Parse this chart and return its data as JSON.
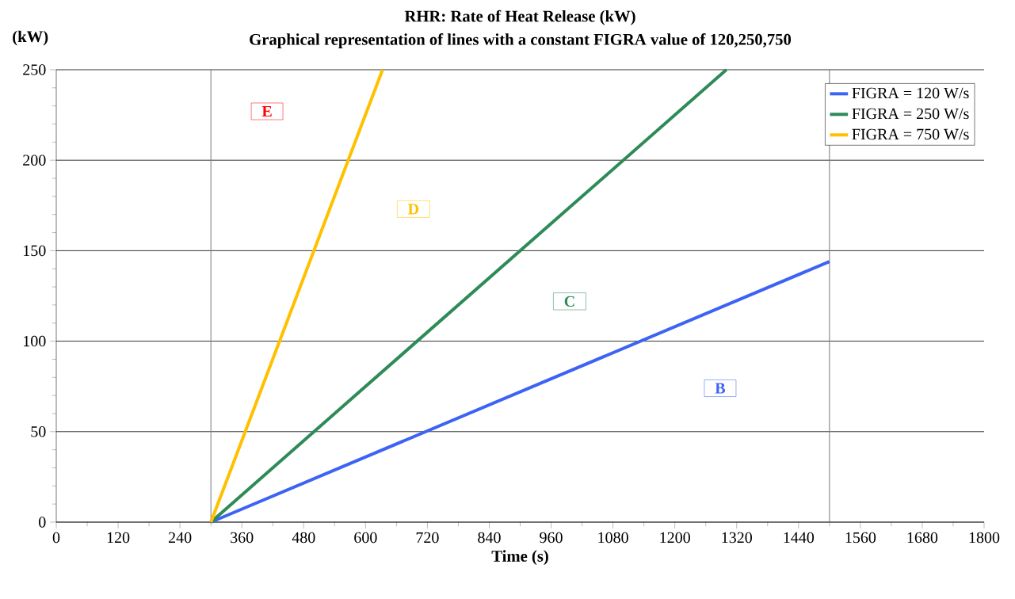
{
  "chart_data": {
    "type": "line",
    "title": "RHR: Rate of Heat Release (kW)",
    "subtitle": "Graphical representation of lines with a constant FIGRA value of 120,250,750",
    "xlabel": "Time (s)",
    "ylabel": "(kW)",
    "series": [
      {
        "name": "FIGRA = 120 W/s",
        "color": "#3d63f5",
        "x": [
          300,
          1500
        ],
        "values": [
          0,
          144
        ]
      },
      {
        "name": "FIGRA = 250 W/s",
        "color": "#2e8b57",
        "x": [
          300,
          1300
        ],
        "values": [
          0,
          250
        ]
      },
      {
        "name": "FIGRA = 750 W/s",
        "color": "#ffc000",
        "x": [
          300,
          633
        ],
        "values": [
          0,
          250
        ]
      }
    ],
    "xlim": [
      0,
      1800
    ],
    "xticks": [
      0,
      120,
      240,
      360,
      480,
      600,
      720,
      840,
      960,
      1080,
      1200,
      1320,
      1440,
      1560,
      1680,
      1800
    ],
    "ylim": [
      0,
      250
    ],
    "yticks": [
      0,
      50,
      100,
      150,
      200,
      250
    ],
    "grid": "y",
    "legend": "top right",
    "marker": "none",
    "line_style": "solid",
    "ref_lines": [
      {
        "axis": "x",
        "value": 300,
        "color": "#808080"
      },
      {
        "axis": "x",
        "value": 1500,
        "color": "#808080"
      }
    ],
    "annotations": [
      {
        "text": "E",
        "x": 409,
        "y": 227
      },
      {
        "text": "D",
        "x": 693,
        "y": 173
      },
      {
        "text": "C",
        "x": 996,
        "y": 122
      },
      {
        "text": "B",
        "x": 1288,
        "y": 74
      }
    ]
  }
}
